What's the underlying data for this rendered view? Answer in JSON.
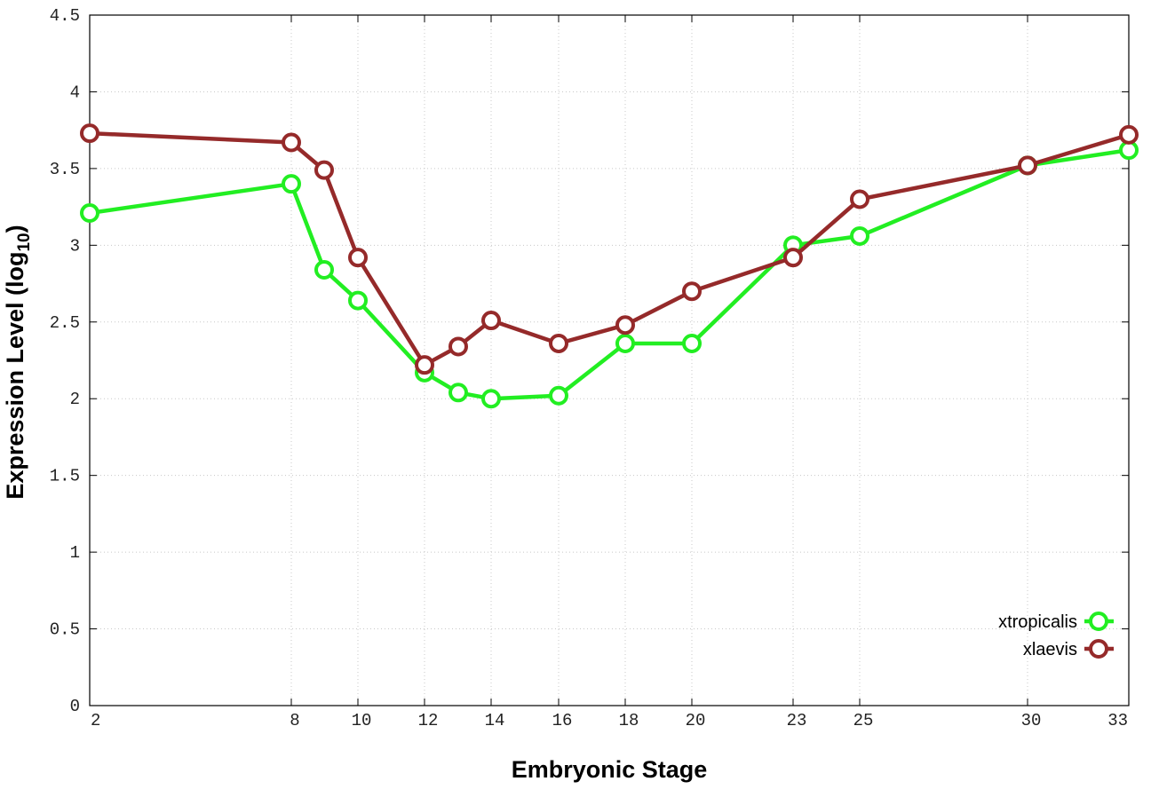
{
  "chart_data": {
    "type": "line",
    "xlabel": "Embryonic Stage",
    "ylabel_main": "Expression Level (log",
    "ylabel_sub": "10",
    "ylabel_close": ")",
    "x_scale": "categorical-uneven",
    "x_ticks": [
      2,
      8,
      10,
      12,
      14,
      16,
      18,
      20,
      23,
      25,
      30,
      33
    ],
    "x_tick_labels": [
      "2",
      "8",
      "10",
      "12",
      "14",
      "16",
      "18",
      "20",
      "23",
      "25",
      "30",
      "33"
    ],
    "y_ticks": [
      0,
      0.5,
      1,
      1.5,
      2,
      2.5,
      3,
      3.5,
      4,
      4.5
    ],
    "y_tick_labels": [
      "0",
      "0.5",
      "1",
      "1.5",
      "2",
      "2.5",
      "3",
      "3.5",
      "4",
      "4.5"
    ],
    "ylim": [
      0,
      4.5
    ],
    "grid": true,
    "legend_position": "bottom-right",
    "series": [
      {
        "name": "xtropicalis",
        "color": "#22ee22",
        "marker": "open-circle",
        "x": [
          2,
          8,
          9,
          10,
          12,
          13,
          14,
          16,
          18,
          20,
          23,
          25,
          30,
          33
        ],
        "y": [
          3.21,
          3.4,
          2.84,
          2.64,
          2.17,
          2.04,
          2.0,
          2.02,
          2.36,
          2.36,
          3.0,
          3.06,
          3.52,
          3.62
        ]
      },
      {
        "name": "xlaevis",
        "color": "#952a2a",
        "marker": "open-circle",
        "x": [
          2,
          8,
          9,
          10,
          12,
          13,
          14,
          16,
          18,
          20,
          23,
          25,
          30,
          33
        ],
        "y": [
          3.73,
          3.67,
          3.49,
          2.92,
          2.22,
          2.34,
          2.51,
          2.36,
          2.48,
          2.7,
          2.92,
          3.3,
          3.52,
          3.72
        ]
      }
    ]
  }
}
